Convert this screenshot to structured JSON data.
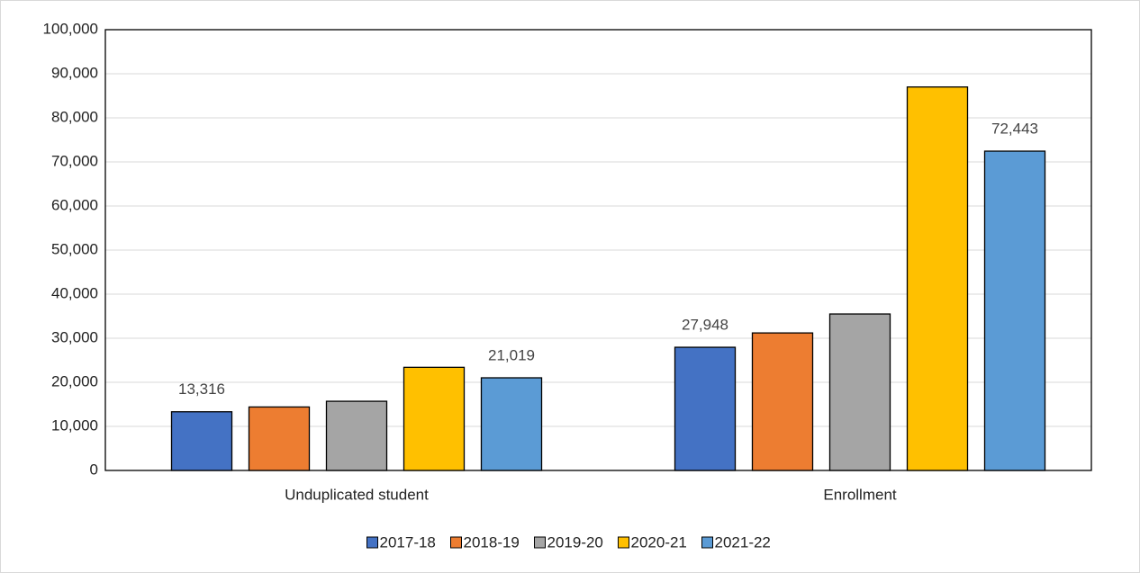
{
  "chart_data": {
    "type": "bar",
    "categories": [
      "Unduplicated student",
      "Enrollment"
    ],
    "series": [
      {
        "name": "2017-18",
        "color": "#4472c4",
        "values": [
          13316,
          27948
        ],
        "value_labels": [
          "13,316",
          "27,948"
        ]
      },
      {
        "name": "2018-19",
        "color": "#ed7d31",
        "values": [
          14400,
          31200
        ]
      },
      {
        "name": "2019-20",
        "color": "#a5a5a5",
        "values": [
          15700,
          35500
        ]
      },
      {
        "name": "2020-21",
        "color": "#ffc000",
        "values": [
          23400,
          87000
        ]
      },
      {
        "name": "2021-22",
        "color": "#5b9bd5",
        "values": [
          21019,
          72443
        ],
        "value_labels": [
          "21,019",
          "72,443"
        ]
      }
    ],
    "ylim": [
      0,
      100000
    ],
    "yticks": [
      0,
      {
        "value": 10000,
        "label": "10,000"
      },
      {
        "value": 20000,
        "label": "20,000"
      },
      {
        "value": 30000,
        "label": "30,000"
      },
      {
        "value": 40000,
        "label": "40,000"
      },
      {
        "value": 50000,
        "label": "50,000"
      },
      {
        "value": 60000,
        "label": "60,000"
      },
      {
        "value": 70000,
        "label": "70,000"
      },
      {
        "value": 80000,
        "label": "80,000"
      },
      {
        "value": 90000,
        "label": "90,000"
      },
      {
        "value": 100000,
        "label": "100,000"
      }
    ],
    "grid": true,
    "legend": "bottom"
  }
}
